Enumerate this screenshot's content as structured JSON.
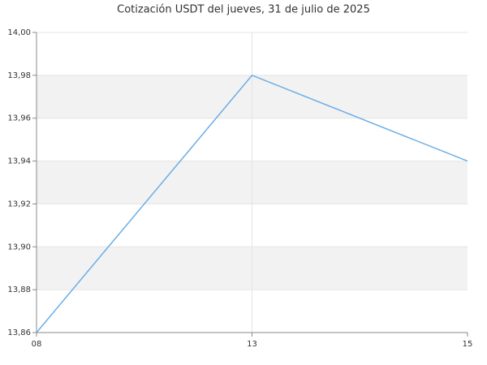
{
  "chart_data": {
    "type": "line",
    "title": "Cotización USDT del jueves, 31 de julio de 2025",
    "categories": [
      "08",
      "13",
      "15"
    ],
    "series": [
      {
        "name": "USDT",
        "color": "#6aaee8",
        "values": [
          13.86,
          13.98,
          13.94
        ]
      }
    ],
    "ylim": [
      13.86,
      14.0
    ],
    "yticks": [
      {
        "value": 13.86,
        "label": "13,86"
      },
      {
        "value": 13.88,
        "label": "13,88"
      },
      {
        "value": 13.9,
        "label": "13,90"
      },
      {
        "value": 13.92,
        "label": "13,92"
      },
      {
        "value": 13.94,
        "label": "13,94"
      },
      {
        "value": 13.96,
        "label": "13,96"
      },
      {
        "value": 13.98,
        "label": "13,98"
      },
      {
        "value": 14.0,
        "label": "14,00"
      }
    ],
    "grid": true,
    "bands": true
  }
}
